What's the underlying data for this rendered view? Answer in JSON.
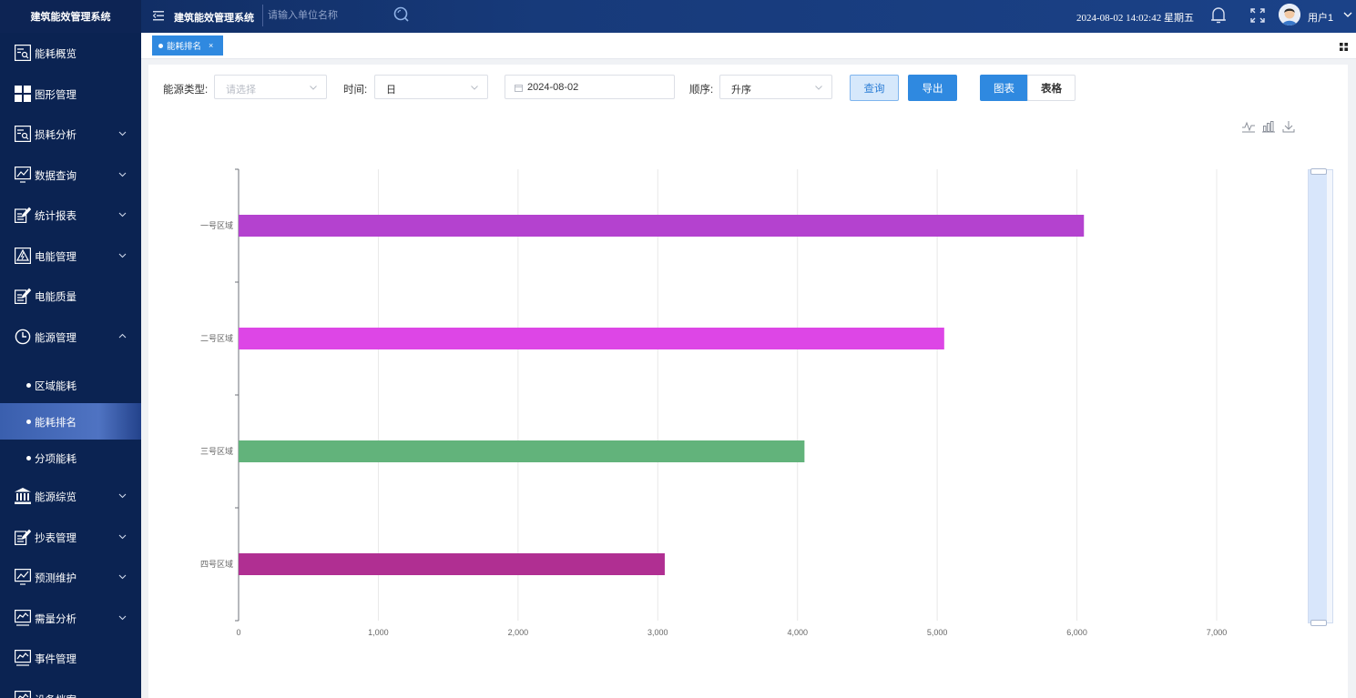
{
  "topbar": {
    "logo": "建筑能效管理系统",
    "system_title": "建筑能效管理系统",
    "unit_search_placeholder": "请输入单位名称",
    "datetime": "2024-08-02 14:02:42 星期五",
    "username": "用户1"
  },
  "sidebar": {
    "items": [
      {
        "label": "能耗概览",
        "icon": "search-list-icon",
        "caret": ""
      },
      {
        "label": "图形管理",
        "icon": "grid-icon",
        "caret": ""
      },
      {
        "label": "损耗分析",
        "icon": "search-list-icon",
        "caret": "down"
      },
      {
        "label": "数据查询",
        "icon": "monitor-chart-icon",
        "caret": "down"
      },
      {
        "label": "统计报表",
        "icon": "edit-doc-icon",
        "caret": "down"
      },
      {
        "label": "电能管理",
        "icon": "lightning-icon",
        "caret": "down"
      },
      {
        "label": "电能质量",
        "icon": "edit-doc-icon",
        "caret": ""
      },
      {
        "label": "能源管理",
        "icon": "clock-icon",
        "caret": "up"
      }
    ],
    "subitems": [
      {
        "label": "区域能耗",
        "active": false
      },
      {
        "label": "能耗排名",
        "active": true
      },
      {
        "label": "分项能耗",
        "active": false
      }
    ],
    "items_after": [
      {
        "label": "能源综览",
        "icon": "bank-icon",
        "caret": "down"
      },
      {
        "label": "抄表管理",
        "icon": "edit-doc-icon",
        "caret": "down"
      },
      {
        "label": "预测维护",
        "icon": "monitor-chart-icon",
        "caret": "down"
      },
      {
        "label": "需量分析",
        "icon": "monitor-line-icon",
        "caret": "down"
      },
      {
        "label": "事件管理",
        "icon": "monitor-line-icon",
        "caret": ""
      },
      {
        "label": "设备档案",
        "icon": "monitor-line-icon",
        "caret": ""
      }
    ]
  },
  "tabs": {
    "active_label": "能耗排名",
    "close": "×"
  },
  "filters": {
    "energy_type_label": "能源类型:",
    "energy_type_placeholder": "请选择",
    "time_label": "时间:",
    "time_value": "日",
    "date_value": "2024-08-02",
    "order_label": "顺序:",
    "order_value": "升序",
    "query_btn": "查询",
    "export_btn": "导出",
    "chart_btn": "图表",
    "table_btn": "表格"
  },
  "colors": {
    "primary": "#2f89e0",
    "sidebar_bg": "#0b2352"
  },
  "chart_data": {
    "type": "bar",
    "orientation": "horizontal",
    "categories": [
      "一号区域",
      "二号区域",
      "三号区域",
      "四号区域"
    ],
    "values": [
      6050,
      5050,
      4050,
      3050
    ],
    "bar_colors": [
      "#b442cf",
      "#dd46e6",
      "#62b37b",
      "#b02f92"
    ],
    "xlim": [
      0,
      7000
    ],
    "x_ticks": [
      "0",
      "1,000",
      "2,000",
      "3,000",
      "4,000",
      "5,000",
      "6,000",
      "7,000"
    ],
    "grid": "vertical",
    "title": "",
    "xlabel": "",
    "ylabel": ""
  }
}
